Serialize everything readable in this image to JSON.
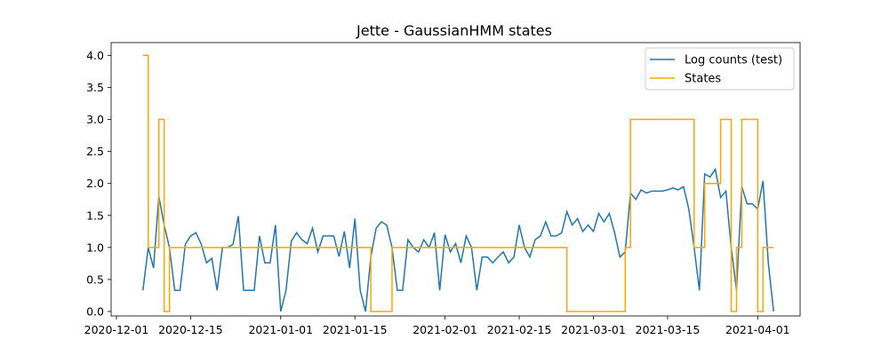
{
  "chart_data": {
    "type": "line",
    "title": "Jette - GaussianHMM states",
    "xlabel": "",
    "ylabel": "",
    "x_axis_type": "date",
    "xlim": [
      "2020-11-30",
      "2021-04-09"
    ],
    "ylim": [
      -0.07,
      4.2
    ],
    "x_tick_labels": [
      "2020-12-01",
      "2020-12-15",
      "2021-01-01",
      "2021-01-15",
      "2021-02-01",
      "2021-02-15",
      "2021-03-01",
      "2021-03-15",
      "2021-04-01"
    ],
    "y_tick_labels": [
      "0.0",
      "0.5",
      "1.0",
      "1.5",
      "2.0",
      "2.5",
      "3.0",
      "3.5",
      "4.0"
    ],
    "y_tick_values": [
      0,
      0.5,
      1,
      1.5,
      2,
      2.5,
      3,
      3.5,
      4
    ],
    "grid": false,
    "legend_position": "top-right",
    "series": [
      {
        "name": "Log counts (test)",
        "color": "#1f77b4",
        "style": "line",
        "points": [
          [
            "2020-12-06",
            0.33
          ],
          [
            "2020-12-07",
            1.0
          ],
          [
            "2020-12-08",
            0.68
          ],
          [
            "2020-12-09",
            1.8
          ],
          [
            "2020-12-10",
            1.35
          ],
          [
            "2020-12-11",
            1.0
          ],
          [
            "2020-12-12",
            0.33
          ],
          [
            "2020-12-13",
            0.33
          ],
          [
            "2020-12-14",
            1.05
          ],
          [
            "2020-12-15",
            1.18
          ],
          [
            "2020-12-16",
            1.23
          ],
          [
            "2020-12-17",
            1.05
          ],
          [
            "2020-12-18",
            0.76
          ],
          [
            "2020-12-19",
            0.83
          ],
          [
            "2020-12-20",
            0.33
          ],
          [
            "2020-12-21",
            1.0
          ],
          [
            "2020-12-22",
            1.0
          ],
          [
            "2020-12-23",
            1.05
          ],
          [
            "2020-12-24",
            1.49
          ],
          [
            "2020-12-25",
            0.33
          ],
          [
            "2020-12-26",
            0.33
          ],
          [
            "2020-12-27",
            0.33
          ],
          [
            "2020-12-28",
            1.18
          ],
          [
            "2020-12-29",
            0.76
          ],
          [
            "2020-12-30",
            0.76
          ],
          [
            "2020-12-31",
            1.35
          ],
          [
            "2021-01-01",
            0.0
          ],
          [
            "2021-01-02",
            0.33
          ],
          [
            "2021-01-03",
            1.1
          ],
          [
            "2021-01-04",
            1.23
          ],
          [
            "2021-01-05",
            1.12
          ],
          [
            "2021-01-06",
            1.06
          ],
          [
            "2021-01-07",
            1.3
          ],
          [
            "2021-01-08",
            0.93
          ],
          [
            "2021-01-09",
            1.18
          ],
          [
            "2021-01-10",
            1.18
          ],
          [
            "2021-01-11",
            1.18
          ],
          [
            "2021-01-12",
            0.86
          ],
          [
            "2021-01-13",
            1.25
          ],
          [
            "2021-01-14",
            0.68
          ],
          [
            "2021-01-15",
            1.45
          ],
          [
            "2021-01-16",
            0.33
          ],
          [
            "2021-01-17",
            0.0
          ],
          [
            "2021-01-18",
            0.85
          ],
          [
            "2021-01-19",
            1.3
          ],
          [
            "2021-01-20",
            1.4
          ],
          [
            "2021-01-21",
            1.35
          ],
          [
            "2021-01-22",
            1.0
          ],
          [
            "2021-01-23",
            0.33
          ],
          [
            "2021-01-24",
            0.33
          ],
          [
            "2021-01-25",
            1.12
          ],
          [
            "2021-01-26",
            1.0
          ],
          [
            "2021-01-27",
            0.93
          ],
          [
            "2021-01-28",
            1.12
          ],
          [
            "2021-01-29",
            1.0
          ],
          [
            "2021-01-30",
            1.23
          ],
          [
            "2021-01-31",
            0.33
          ],
          [
            "2021-02-01",
            1.2
          ],
          [
            "2021-02-02",
            0.93
          ],
          [
            "2021-02-03",
            1.06
          ],
          [
            "2021-02-04",
            0.76
          ],
          [
            "2021-02-05",
            1.18
          ],
          [
            "2021-02-06",
            1.0
          ],
          [
            "2021-02-07",
            0.33
          ],
          [
            "2021-02-08",
            0.85
          ],
          [
            "2021-02-09",
            0.85
          ],
          [
            "2021-02-10",
            0.76
          ],
          [
            "2021-02-11",
            0.85
          ],
          [
            "2021-02-12",
            0.93
          ],
          [
            "2021-02-13",
            0.76
          ],
          [
            "2021-02-14",
            0.85
          ],
          [
            "2021-02-15",
            1.35
          ],
          [
            "2021-02-16",
            1.0
          ],
          [
            "2021-02-17",
            0.85
          ],
          [
            "2021-02-18",
            1.12
          ],
          [
            "2021-02-19",
            1.18
          ],
          [
            "2021-02-20",
            1.4
          ],
          [
            "2021-02-21",
            1.18
          ],
          [
            "2021-02-22",
            1.18
          ],
          [
            "2021-02-23",
            1.23
          ],
          [
            "2021-02-24",
            1.56
          ],
          [
            "2021-02-25",
            1.35
          ],
          [
            "2021-02-26",
            1.45
          ],
          [
            "2021-02-27",
            1.25
          ],
          [
            "2021-02-28",
            1.35
          ],
          [
            "2021-03-01",
            1.25
          ],
          [
            "2021-03-02",
            1.53
          ],
          [
            "2021-03-03",
            1.4
          ],
          [
            "2021-03-04",
            1.53
          ],
          [
            "2021-03-05",
            1.23
          ],
          [
            "2021-03-06",
            0.85
          ],
          [
            "2021-03-07",
            0.93
          ],
          [
            "2021-03-08",
            1.85
          ],
          [
            "2021-03-09",
            1.75
          ],
          [
            "2021-03-10",
            1.9
          ],
          [
            "2021-03-11",
            1.85
          ],
          [
            "2021-03-12",
            1.88
          ],
          [
            "2021-03-13",
            1.88
          ],
          [
            "2021-03-14",
            1.88
          ],
          [
            "2021-03-15",
            1.9
          ],
          [
            "2021-03-16",
            1.93
          ],
          [
            "2021-03-17",
            1.9
          ],
          [
            "2021-03-18",
            1.95
          ],
          [
            "2021-03-19",
            1.6
          ],
          [
            "2021-03-20",
            1.0
          ],
          [
            "2021-03-21",
            0.33
          ],
          [
            "2021-03-22",
            2.15
          ],
          [
            "2021-03-23",
            2.1
          ],
          [
            "2021-03-24",
            2.22
          ],
          [
            "2021-03-25",
            1.78
          ],
          [
            "2021-03-26",
            1.88
          ],
          [
            "2021-03-27",
            1.0
          ],
          [
            "2021-03-28",
            0.33
          ],
          [
            "2021-03-29",
            1.95
          ],
          [
            "2021-03-30",
            1.68
          ],
          [
            "2021-03-31",
            1.68
          ],
          [
            "2021-04-01",
            1.6
          ],
          [
            "2021-04-02",
            2.04
          ],
          [
            "2021-04-03",
            0.76
          ],
          [
            "2021-04-04",
            0.0
          ]
        ]
      },
      {
        "name": "States",
        "color": "#ffa500",
        "style": "step-post",
        "points": [
          [
            "2020-12-06",
            4
          ],
          [
            "2020-12-07",
            1
          ],
          [
            "2020-12-09",
            3
          ],
          [
            "2020-12-10",
            0
          ],
          [
            "2020-12-11",
            1
          ],
          [
            "2021-01-18",
            0
          ],
          [
            "2021-01-22",
            1
          ],
          [
            "2021-02-24",
            0
          ],
          [
            "2021-03-07",
            1
          ],
          [
            "2021-03-08",
            3
          ],
          [
            "2021-03-20",
            1
          ],
          [
            "2021-03-22",
            2
          ],
          [
            "2021-03-25",
            3
          ],
          [
            "2021-03-27",
            0
          ],
          [
            "2021-03-28",
            1
          ],
          [
            "2021-03-29",
            3
          ],
          [
            "2021-04-01",
            0
          ],
          [
            "2021-04-02",
            1
          ],
          [
            "2021-04-04",
            1
          ]
        ]
      }
    ]
  }
}
